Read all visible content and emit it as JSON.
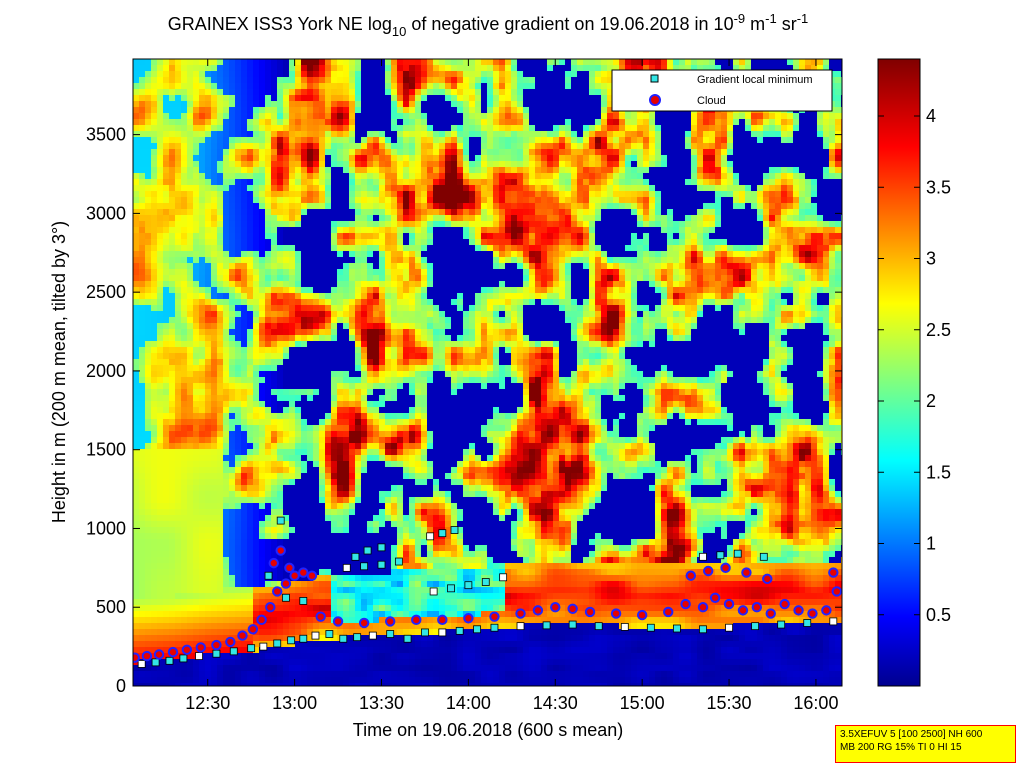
{
  "title": {
    "prefix": "GRAINEX ISS3 York NE log",
    "sub": "10",
    "middle": " of negative gradient on 19.06.2018 in 10",
    "sup1": "-9",
    "unit1": " m",
    "sup2": "-1",
    "unit2": " sr",
    "sup3": "-1"
  },
  "legend": {
    "items": [
      {
        "label": "Gradient local minimum",
        "marker": "square",
        "color": "#33e6e6"
      },
      {
        "label": "Cloud",
        "marker": "circle",
        "color": "#e60000",
        "edge": "#2222ff"
      }
    ]
  },
  "infobox": {
    "line1": "3.5XEFUV 5 [100 2500] NH 600",
    "line2": "MB 200 RG 15% TI 0 HI 15"
  },
  "colors": {
    "deep_blue": "#00008f",
    "blue": "#0000ff",
    "cyan": "#00ffff",
    "yellow": "#ffff00",
    "red": "#ff0000",
    "dark_red": "#800000"
  },
  "chart_data": {
    "type": "heatmap",
    "title": "GRAINEX ISS3 York NE log10 of negative gradient on 19.06.2018 in 10^-9 m^-1 sr^-1",
    "xlabel": "Time on 19.06.2018 (600 s mean)",
    "ylabel": "Height in m (200 m mean, tilted by 3°)",
    "x_unit": "hours",
    "xlim": [
      12.07,
      16.15
    ],
    "ylim": [
      0,
      3980
    ],
    "xticks": [
      12.5,
      13.0,
      13.5,
      14.0,
      14.5,
      15.0,
      15.5,
      16.0
    ],
    "xtick_labels": [
      "12:30",
      "13:00",
      "13:30",
      "14:00",
      "14:30",
      "15:00",
      "15:30",
      "16:00"
    ],
    "yticks": [
      0,
      500,
      1000,
      1500,
      2000,
      2500,
      3000,
      3500
    ],
    "ytick_labels": [
      "0",
      "500",
      "1000",
      "1500",
      "2000",
      "2500",
      "3000",
      "3500"
    ],
    "colorbar": {
      "clim": [
        0,
        4.4
      ],
      "ticks": [
        0.5,
        1,
        1.5,
        2,
        2.5,
        3,
        3.5,
        4
      ],
      "tick_labels": [
        "0.5",
        "1",
        "1.5",
        "2",
        "2.5",
        "3",
        "3.5",
        "4"
      ],
      "colormap": "jet"
    },
    "boundary_layer_top": {
      "x": [
        12.07,
        12.3,
        12.5,
        12.7,
        12.9,
        13.0,
        13.2,
        13.5,
        13.8,
        14.0,
        14.3,
        14.6,
        14.9,
        15.2,
        15.5,
        15.8,
        16.15
      ],
      "y": [
        150,
        170,
        200,
        220,
        240,
        270,
        300,
        320,
        340,
        350,
        380,
        390,
        380,
        370,
        380,
        390,
        400
      ]
    },
    "series": [
      {
        "name": "Gradient local minimum",
        "marker": "square",
        "x": [
          12.12,
          12.2,
          12.28,
          12.36,
          12.45,
          12.55,
          12.65,
          12.75,
          12.82,
          12.9,
          12.98,
          13.05,
          13.12,
          13.2,
          13.28,
          13.36,
          13.45,
          13.55,
          13.65,
          13.75,
          13.85,
          13.95,
          14.05,
          14.15,
          14.3,
          14.45,
          14.6,
          14.75,
          14.9,
          15.05,
          15.2,
          15.35,
          15.5,
          15.65,
          15.8,
          15.95,
          16.1,
          12.85,
          12.95,
          13.05,
          13.3,
          13.4,
          13.5,
          13.6,
          13.8,
          13.9,
          14.0,
          14.1,
          14.2,
          13.35,
          13.42,
          13.5,
          13.78,
          13.85,
          13.92,
          12.92,
          15.35,
          15.45,
          15.55,
          15.7
        ],
        "y": [
          140,
          150,
          160,
          175,
          190,
          205,
          220,
          240,
          250,
          270,
          290,
          300,
          320,
          330,
          300,
          310,
          320,
          330,
          300,
          340,
          340,
          350,
          360,
          370,
          380,
          385,
          390,
          380,
          375,
          370,
          365,
          360,
          370,
          380,
          390,
          400,
          410,
          700,
          560,
          540,
          750,
          760,
          770,
          790,
          600,
          620,
          640,
          660,
          690,
          820,
          860,
          880,
          950,
          970,
          990,
          1050,
          820,
          830,
          840,
          820
        ]
      },
      {
        "name": "Cloud",
        "marker": "circle",
        "x": [
          12.08,
          12.15,
          12.22,
          12.3,
          12.38,
          12.46,
          12.55,
          12.63,
          12.7,
          12.76,
          12.81,
          12.86,
          12.9,
          12.95,
          13.0,
          13.05,
          13.1,
          13.15,
          13.25,
          13.4,
          13.55,
          13.7,
          13.85,
          14.0,
          14.15,
          14.3,
          14.4,
          14.5,
          14.6,
          14.7,
          14.85,
          15.0,
          15.15,
          15.25,
          15.35,
          15.42,
          15.5,
          15.58,
          15.66,
          15.74,
          15.82,
          15.9,
          15.98,
          16.06,
          16.12,
          12.88,
          12.92,
          12.97,
          15.28,
          15.38,
          15.48,
          15.6,
          15.72,
          16.1
        ],
        "y": [
          180,
          190,
          200,
          215,
          230,
          245,
          260,
          280,
          320,
          360,
          420,
          500,
          600,
          650,
          700,
          720,
          700,
          440,
          410,
          400,
          410,
          420,
          420,
          430,
          440,
          460,
          480,
          500,
          490,
          470,
          460,
          450,
          470,
          520,
          500,
          560,
          520,
          480,
          500,
          460,
          520,
          480,
          460,
          480,
          600,
          780,
          860,
          750,
          700,
          730,
          750,
          720,
          680,
          720
        ]
      }
    ]
  }
}
